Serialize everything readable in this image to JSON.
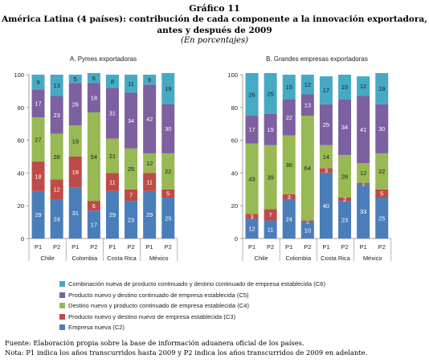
{
  "header": {
    "title": "Gráfico 11",
    "subtitle_line1": "América Latina (4 países): contribución de cada componente a la innovación exportadora,",
    "subtitle_line2": "antes y después de 2009",
    "unit": "(En porcentajes)"
  },
  "colors": {
    "C2": "#4a7ebb",
    "C3": "#be4b48",
    "C4": "#98b954",
    "C5": "#7d60a0",
    "C6": "#46aac5"
  },
  "legend": [
    {
      "key": "C6",
      "label": "Combinación nueva de producto continuado y destino continuado de empresa establecida (C6)"
    },
    {
      "key": "C5",
      "label": "Producto nuevo y destino continuado de empresa establecida (C5)"
    },
    {
      "key": "C4",
      "label": "Destino nuevo y producto continuado de empresa establecida (C4)"
    },
    {
      "key": "C3",
      "label": "Producto nuevo y destino nuevo de empresa establecida (C3)"
    },
    {
      "key": "C2",
      "label": "Empresa nueva (C2)"
    }
  ],
  "chart_data": [
    {
      "type": "bar",
      "stacked": true,
      "title": "A.   Pymes exportadoras",
      "categories": [
        "P1",
        "P2",
        "P1",
        "P2",
        "P1",
        "P2",
        "P1",
        "P2"
      ],
      "groups": [
        "Chile",
        "Colombia",
        "Costa Rica",
        "México"
      ],
      "ylim": [
        0,
        100
      ],
      "yticks": [
        0,
        20,
        40,
        60,
        80,
        100
      ],
      "series": [
        {
          "key": "C2",
          "values": [
            29,
            24,
            31,
            17,
            29,
            23,
            29,
            25
          ]
        },
        {
          "key": "C3",
          "values": [
            18,
            12,
            19,
            6,
            11,
            7,
            11,
            5
          ]
        },
        {
          "key": "C4",
          "values": [
            27,
            28,
            19,
            54,
            21,
            25,
            12,
            22
          ]
        },
        {
          "key": "C5",
          "values": [
            17,
            23,
            26,
            18,
            31,
            34,
            42,
            30
          ]
        },
        {
          "key": "C6",
          "values": [
            9,
            13,
            5,
            6,
            8,
            11,
            6,
            19
          ]
        }
      ]
    },
    {
      "type": "bar",
      "stacked": true,
      "title": "B.   Grandes empresas exportadoras",
      "categories": [
        "P1",
        "P2",
        "P1",
        "P2",
        "P1",
        "P2",
        "P1",
        "P2"
      ],
      "groups": [
        "Chile",
        "Colombia",
        "Costa Rica",
        "México"
      ],
      "ylim": [
        0,
        100
      ],
      "yticks": [
        0,
        20,
        40,
        60,
        80,
        100
      ],
      "series": [
        {
          "key": "C2",
          "values": [
            12,
            11,
            24,
            10,
            40,
            23,
            33,
            25
          ]
        },
        {
          "key": "C3",
          "values": [
            3,
            7,
            3,
            1,
            3,
            2,
            1,
            5
          ]
        },
        {
          "key": "C4",
          "values": [
            43,
            39,
            36,
            64,
            14,
            26,
            12,
            22
          ]
        },
        {
          "key": "C5",
          "values": [
            17,
            19,
            22,
            13,
            25,
            34,
            41,
            30
          ]
        },
        {
          "key": "C6",
          "values": [
            26,
            25,
            15,
            12,
            17,
            15,
            12,
            19
          ]
        }
      ]
    }
  ],
  "footnotes": {
    "source": "Fuente: Elaboración propia sobre la base de información aduanera oficial de los países.",
    "note": "Nota: P1 indica los años transcurridos hasta 2009 y P2 indica los años transcurridos de 2009 en adelante."
  }
}
